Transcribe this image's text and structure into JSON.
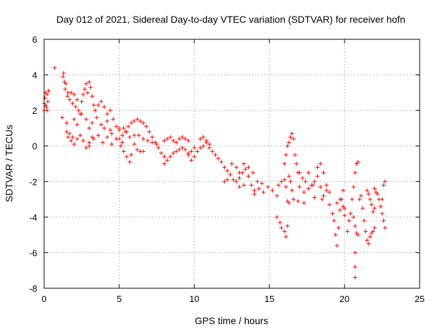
{
  "chart_data": {
    "type": "scatter",
    "title": "Day 012 of 2021, Sidereal Day-to-day VTEC variation (SDTVAR) for receiver hofn",
    "xlabel": "GPS time / hours",
    "ylabel": "SDTVAR / TECUs",
    "xlim": [
      0,
      25
    ],
    "ylim": [
      -8,
      6
    ],
    "xticks": [
      0,
      5,
      10,
      15,
      20,
      25
    ],
    "yticks": [
      -8,
      -6,
      -4,
      -2,
      0,
      2,
      4,
      6
    ],
    "grid": true,
    "marker": "+",
    "color": "#ff0000",
    "series": [
      {
        "name": "SDTVAR",
        "points": [
          [
            0.0,
            2.4
          ],
          [
            0.05,
            2.7
          ],
          [
            0.1,
            3.0
          ],
          [
            0.15,
            2.2
          ],
          [
            0.2,
            2.9
          ],
          [
            0.25,
            2.5
          ],
          [
            0.3,
            3.1
          ],
          [
            0.0,
            2.0
          ],
          [
            0.1,
            2.3
          ],
          [
            0.2,
            2.0
          ],
          [
            0.7,
            4.4
          ],
          [
            1.2,
            1.6
          ],
          [
            1.25,
            3.9
          ],
          [
            1.3,
            4.1
          ],
          [
            1.35,
            3.6
          ],
          [
            1.4,
            3.2
          ],
          [
            1.45,
            3.5
          ],
          [
            1.5,
            1.3
          ],
          [
            1.55,
            2.8
          ],
          [
            1.6,
            3.0
          ],
          [
            1.7,
            2.6
          ],
          [
            1.8,
            3.0
          ],
          [
            1.9,
            2.4
          ],
          [
            2.0,
            2.9
          ],
          [
            2.1,
            2.2
          ],
          [
            2.2,
            2.6
          ],
          [
            2.3,
            2.0
          ],
          [
            2.4,
            1.8
          ],
          [
            2.5,
            2.5
          ],
          [
            2.6,
            2.9
          ],
          [
            2.7,
            3.2
          ],
          [
            2.8,
            3.5
          ],
          [
            2.9,
            3.0
          ],
          [
            3.0,
            3.6
          ],
          [
            3.1,
            3.3
          ],
          [
            3.2,
            2.8
          ],
          [
            3.3,
            2.3
          ],
          [
            1.5,
            0.8
          ],
          [
            1.6,
            0.5
          ],
          [
            1.7,
            0.7
          ],
          [
            1.8,
            0.3
          ],
          [
            1.9,
            0.5
          ],
          [
            2.0,
            0.1
          ],
          [
            2.2,
            0.4
          ],
          [
            2.4,
            0.6
          ],
          [
            2.6,
            0.3
          ],
          [
            2.8,
            -0.1
          ],
          [
            3.0,
            0.2
          ],
          [
            3.2,
            0.5
          ],
          [
            2.0,
            1.5
          ],
          [
            2.2,
            1.2
          ],
          [
            2.5,
            1.8
          ],
          [
            2.8,
            1.5
          ],
          [
            3.0,
            1.0
          ],
          [
            3.2,
            1.3
          ],
          [
            3.5,
            1.6
          ],
          [
            3.8,
            1.2
          ],
          [
            4.0,
            1.0
          ],
          [
            4.2,
            1.4
          ],
          [
            4.4,
            0.9
          ],
          [
            4.5,
            0.7
          ],
          [
            3.4,
            2.0
          ],
          [
            3.6,
            2.3
          ],
          [
            3.8,
            2.5
          ],
          [
            4.0,
            2.2
          ],
          [
            4.2,
            1.8
          ],
          [
            4.4,
            2.0
          ],
          [
            4.6,
            1.5
          ],
          [
            4.8,
            1.1
          ],
          [
            5.0,
            1.0
          ],
          [
            5.2,
            0.6
          ],
          [
            3.0,
            0.0
          ],
          [
            3.3,
            0.4
          ],
          [
            3.6,
            0.6
          ],
          [
            3.9,
            0.2
          ],
          [
            4.2,
            0.5
          ],
          [
            4.5,
            0.1
          ],
          [
            4.8,
            0.4
          ],
          [
            5.1,
            0.0
          ],
          [
            5.3,
            -0.3
          ],
          [
            5.5,
            -0.6
          ],
          [
            5.7,
            -0.9
          ],
          [
            5.8,
            -0.5
          ],
          [
            5.0,
            0.4
          ],
          [
            5.2,
            0.2
          ],
          [
            5.4,
            0.8
          ],
          [
            5.6,
            1.1
          ],
          [
            5.8,
            1.3
          ],
          [
            6.0,
            1.4
          ],
          [
            6.2,
            1.5
          ],
          [
            6.4,
            1.4
          ],
          [
            6.6,
            1.3
          ],
          [
            6.8,
            1.1
          ],
          [
            7.0,
            0.8
          ],
          [
            7.2,
            0.5
          ],
          [
            7.4,
            0.2
          ],
          [
            7.6,
            -0.1
          ],
          [
            7.8,
            -0.4
          ],
          [
            8.0,
            -0.6
          ],
          [
            6.0,
            0.6
          ],
          [
            6.3,
            0.6
          ],
          [
            6.6,
            0.4
          ],
          [
            6.9,
            0.3
          ],
          [
            7.2,
            0.2
          ],
          [
            7.5,
            0.1
          ],
          [
            5.0,
            0.9
          ],
          [
            5.3,
            1.0
          ],
          [
            5.5,
            0.8
          ],
          [
            5.7,
            0.5
          ],
          [
            6.0,
            0.1
          ],
          [
            6.2,
            -0.2
          ],
          [
            6.4,
            -0.3
          ],
          [
            6.6,
            -0.3
          ],
          [
            8.0,
            -1.0
          ],
          [
            8.2,
            -0.8
          ],
          [
            8.4,
            -0.6
          ],
          [
            8.6,
            -0.4
          ],
          [
            8.8,
            -0.3
          ],
          [
            9.0,
            -0.2
          ],
          [
            9.2,
            -0.1
          ],
          [
            9.4,
            -0.2
          ],
          [
            9.6,
            -0.4
          ],
          [
            9.8,
            -0.3
          ],
          [
            10.0,
            -0.1
          ],
          [
            8.0,
            0.3
          ],
          [
            8.2,
            0.4
          ],
          [
            8.4,
            0.5
          ],
          [
            8.6,
            0.3
          ],
          [
            8.8,
            0.2
          ],
          [
            9.0,
            0.4
          ],
          [
            9.2,
            0.5
          ],
          [
            9.4,
            0.4
          ],
          [
            9.6,
            0.3
          ],
          [
            9.6,
            -0.5
          ],
          [
            9.8,
            -0.8
          ],
          [
            10.0,
            -0.6
          ],
          [
            10.2,
            -0.3
          ],
          [
            10.4,
            -0.1
          ],
          [
            10.6,
            0.0
          ],
          [
            10.8,
            0.2
          ],
          [
            11.0,
            -0.1
          ],
          [
            11.2,
            -0.3
          ],
          [
            11.4,
            -0.5
          ],
          [
            11.6,
            -0.7
          ],
          [
            10.4,
            0.4
          ],
          [
            10.6,
            0.5
          ],
          [
            10.8,
            0.3
          ],
          [
            11.0,
            0.1
          ],
          [
            11.8,
            -0.9
          ],
          [
            12.0,
            -1.2
          ],
          [
            12.2,
            -1.4
          ],
          [
            12.4,
            -1.6
          ],
          [
            12.6,
            -1.9
          ],
          [
            12.8,
            -2.0
          ],
          [
            13.0,
            -1.8
          ],
          [
            13.2,
            -1.5
          ],
          [
            13.4,
            -1.3
          ],
          [
            13.6,
            -1.7
          ],
          [
            13.8,
            -2.2
          ],
          [
            14.0,
            -2.5
          ],
          [
            12.5,
            -1.0
          ],
          [
            12.8,
            -1.2
          ],
          [
            13.0,
            -1.5
          ],
          [
            13.3,
            -1.0
          ],
          [
            13.6,
            -1.2
          ],
          [
            13.9,
            -1.5
          ],
          [
            14.2,
            -2.0
          ],
          [
            14.5,
            -2.1
          ],
          [
            12.0,
            -2.0
          ],
          [
            12.2,
            -1.9
          ],
          [
            13.0,
            -2.3
          ],
          [
            13.3,
            -2.2
          ],
          [
            14.0,
            -2.7
          ],
          [
            14.3,
            -2.4
          ],
          [
            14.6,
            -2.6
          ],
          [
            14.9,
            -2.3
          ],
          [
            15.2,
            -2.5
          ],
          [
            15.5,
            -2.8
          ],
          [
            15.6,
            -2.2
          ],
          [
            15.8,
            -2.0
          ],
          [
            16.0,
            -1.9
          ],
          [
            16.1,
            -2.3
          ],
          [
            16.2,
            -3.1
          ],
          [
            16.3,
            -3.2
          ],
          [
            15.5,
            -4.0
          ],
          [
            15.7,
            -4.3
          ],
          [
            15.8,
            -4.6
          ],
          [
            16.0,
            -4.8
          ],
          [
            16.1,
            -5.1
          ],
          [
            16.2,
            -4.5
          ],
          [
            16.0,
            -1.0
          ],
          [
            16.1,
            -0.5
          ],
          [
            16.2,
            0.0
          ],
          [
            16.3,
            0.2
          ],
          [
            16.4,
            0.5
          ],
          [
            16.5,
            0.7
          ],
          [
            16.6,
            0.4
          ],
          [
            16.7,
            -0.5
          ],
          [
            16.8,
            -1.0
          ],
          [
            16.9,
            -1.5
          ],
          [
            16.3,
            -1.7
          ],
          [
            16.4,
            -2.0
          ],
          [
            16.5,
            -2.5
          ],
          [
            16.6,
            -3.0
          ],
          [
            17.0,
            -1.5
          ],
          [
            17.2,
            -1.8
          ],
          [
            17.4,
            -2.0
          ],
          [
            17.6,
            -1.5
          ],
          [
            17.8,
            -2.2
          ],
          [
            18.0,
            -2.0
          ],
          [
            18.2,
            -1.7
          ],
          [
            18.4,
            -2.3
          ],
          [
            18.6,
            -2.8
          ],
          [
            18.8,
            -2.5
          ],
          [
            17.0,
            -2.3
          ],
          [
            17.3,
            -2.6
          ],
          [
            17.6,
            -2.4
          ],
          [
            17.9,
            -2.2
          ],
          [
            18.2,
            -1.2
          ],
          [
            18.4,
            -1.0
          ],
          [
            18.6,
            -1.5
          ],
          [
            18.8,
            -2.2
          ],
          [
            19.0,
            -2.6
          ],
          [
            16.9,
            -3.1
          ],
          [
            17.3,
            -3.2
          ],
          [
            18.0,
            -2.9
          ],
          [
            18.5,
            -3.0
          ],
          [
            19.0,
            -3.3
          ],
          [
            19.2,
            -3.8
          ],
          [
            19.3,
            -4.2
          ],
          [
            19.4,
            -5.0
          ],
          [
            19.5,
            -5.6
          ],
          [
            19.6,
            -4.6
          ],
          [
            19.7,
            -3.6
          ],
          [
            19.8,
            -3.0
          ],
          [
            19.9,
            -2.5
          ],
          [
            19.5,
            -3.2
          ],
          [
            19.7,
            -3.0
          ],
          [
            19.9,
            -3.4
          ],
          [
            20.0,
            -3.9
          ],
          [
            20.0,
            -3.5
          ],
          [
            20.2,
            -4.8
          ],
          [
            20.3,
            -4.2
          ],
          [
            20.4,
            -3.8
          ],
          [
            20.5,
            -3.0
          ],
          [
            20.6,
            -2.3
          ],
          [
            20.7,
            -1.5
          ],
          [
            20.8,
            -1.0
          ],
          [
            20.9,
            -0.9
          ],
          [
            20.6,
            -4.0
          ],
          [
            20.7,
            -4.5
          ],
          [
            20.8,
            -4.9
          ],
          [
            20.9,
            -5.0
          ],
          [
            20.7,
            -6.0
          ],
          [
            20.7,
            -6.8
          ],
          [
            20.7,
            -7.4
          ],
          [
            21.0,
            -3.0
          ],
          [
            21.1,
            -2.8
          ],
          [
            21.2,
            -3.5
          ],
          [
            21.3,
            -4.2
          ],
          [
            21.4,
            -4.8
          ],
          [
            21.5,
            -5.3
          ],
          [
            21.6,
            -5.5
          ],
          [
            21.7,
            -5.1
          ],
          [
            21.8,
            -4.9
          ],
          [
            21.9,
            -4.8
          ],
          [
            22.0,
            -4.6
          ],
          [
            21.5,
            -2.5
          ],
          [
            21.6,
            -2.7
          ],
          [
            21.7,
            -3.0
          ],
          [
            21.8,
            -3.3
          ],
          [
            21.9,
            -3.7
          ],
          [
            22.0,
            -3.5
          ],
          [
            22.0,
            -2.4
          ],
          [
            22.1,
            -2.6
          ],
          [
            22.2,
            -2.7
          ],
          [
            22.3,
            -3.0
          ],
          [
            22.4,
            -3.4
          ],
          [
            22.5,
            -3.8
          ],
          [
            22.6,
            -4.2
          ],
          [
            22.7,
            -4.6
          ],
          [
            22.7,
            -2.0
          ],
          [
            22.6,
            -2.2
          ],
          [
            22.5,
            -3.0
          ]
        ]
      }
    ]
  }
}
